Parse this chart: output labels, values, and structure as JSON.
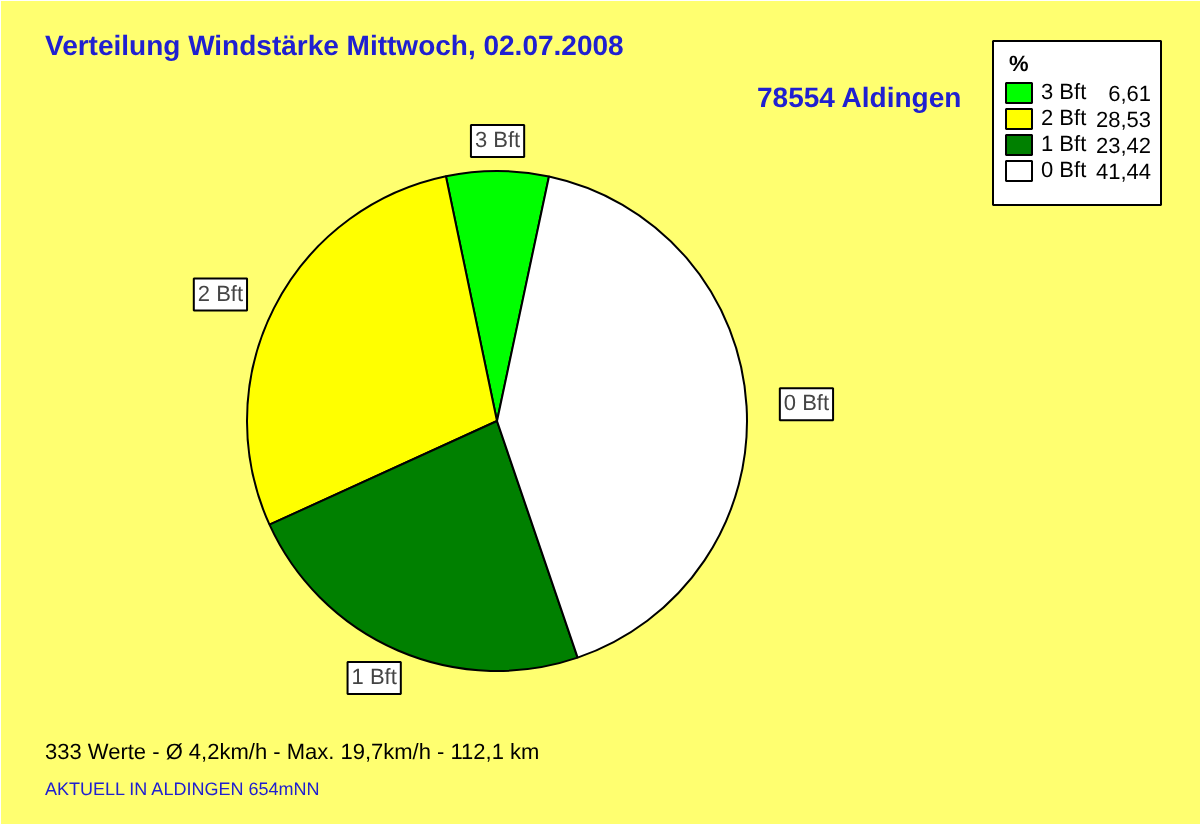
{
  "chart_data": {
    "type": "pie",
    "title": "Verteilung Windstärke  Mittwoch, 02.07.2008",
    "subtitle": "78554 Aldingen",
    "categories": [
      "3 Bft",
      "2 Bft",
      "1 Bft",
      "0 Bft"
    ],
    "values": [
      6.61,
      28.53,
      23.42,
      41.44
    ],
    "value_labels": [
      "6,61",
      "28,53",
      "23,42",
      "41,44"
    ],
    "colors": [
      "#00ff00",
      "#ffff00",
      "#008000",
      "#ffffff"
    ],
    "legend_title": "%",
    "legend": "top right",
    "annotations": [
      "333 Werte   -   Ø 4,2km/h  -  Max. 19,7km/h   -   112,1 km",
      "AKTUELL IN ALDINGEN 654mNN"
    ]
  }
}
